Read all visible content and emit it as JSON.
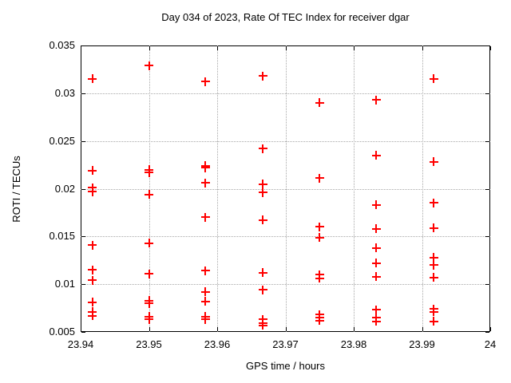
{
  "accent_colors": {
    "marker": "#ee0000",
    "grid": "#a8a8a8",
    "frame": "#000000",
    "background": "#ffffff"
  },
  "chart_data": {
    "type": "scatter",
    "title": "Day 034 of 2023, Rate Of TEC Index for receiver dgar",
    "xlabel": "GPS time / hours",
    "ylabel": "ROTI / TECUs",
    "xlim": [
      23.94,
      24
    ],
    "ylim": [
      0.005,
      0.035
    ],
    "grid": true,
    "legend_position": "none",
    "marker": "plus",
    "marker_color": "#ee0000",
    "x_ticks": [
      {
        "v": 23.94,
        "label": "23.94"
      },
      {
        "v": 23.95,
        "label": "23.95"
      },
      {
        "v": 23.96,
        "label": "23.96"
      },
      {
        "v": 23.97,
        "label": "23.97"
      },
      {
        "v": 23.98,
        "label": "23.98"
      },
      {
        "v": 23.99,
        "label": "23.99"
      },
      {
        "v": 24,
        "label": "24"
      }
    ],
    "y_ticks": [
      {
        "v": 0.005,
        "label": "0.005"
      },
      {
        "v": 0.01,
        "label": "0.01"
      },
      {
        "v": 0.015,
        "label": "0.015"
      },
      {
        "v": 0.02,
        "label": "0.02"
      },
      {
        "v": 0.025,
        "label": "0.025"
      },
      {
        "v": 0.03,
        "label": "0.03"
      },
      {
        "v": 0.035,
        "label": "0.035"
      }
    ],
    "series": [
      {
        "name": "ROTI",
        "points": [
          [
            23.9417,
            0.0315
          ],
          [
            23.9417,
            0.0219
          ],
          [
            23.9417,
            0.0201
          ],
          [
            23.9417,
            0.0197
          ],
          [
            23.9417,
            0.0141
          ],
          [
            23.9417,
            0.0115
          ],
          [
            23.9417,
            0.0104
          ],
          [
            23.9417,
            0.0081
          ],
          [
            23.9417,
            0.0071
          ],
          [
            23.9417,
            0.0067
          ],
          [
            23.95,
            0.0329
          ],
          [
            23.95,
            0.022
          ],
          [
            23.95,
            0.0217
          ],
          [
            23.95,
            0.0194
          ],
          [
            23.95,
            0.0143
          ],
          [
            23.95,
            0.0111
          ],
          [
            23.95,
            0.0083
          ],
          [
            23.95,
            0.008
          ],
          [
            23.95,
            0.0066
          ],
          [
            23.95,
            0.0063
          ],
          [
            23.9583,
            0.0312
          ],
          [
            23.9583,
            0.0224
          ],
          [
            23.9583,
            0.0222
          ],
          [
            23.9583,
            0.0206
          ],
          [
            23.9583,
            0.017
          ],
          [
            23.9583,
            0.0114
          ],
          [
            23.9583,
            0.0092
          ],
          [
            23.9583,
            0.0082
          ],
          [
            23.9583,
            0.0066
          ],
          [
            23.9583,
            0.0063
          ],
          [
            23.9667,
            0.0318
          ],
          [
            23.9667,
            0.0242
          ],
          [
            23.9667,
            0.0205
          ],
          [
            23.9667,
            0.0196
          ],
          [
            23.9667,
            0.0167
          ],
          [
            23.9667,
            0.0112
          ],
          [
            23.9667,
            0.0094
          ],
          [
            23.9667,
            0.0063
          ],
          [
            23.9667,
            0.0059
          ],
          [
            23.9667,
            0.0057
          ],
          [
            23.975,
            0.029
          ],
          [
            23.975,
            0.0211
          ],
          [
            23.975,
            0.016
          ],
          [
            23.975,
            0.0149
          ],
          [
            23.975,
            0.011
          ],
          [
            23.975,
            0.0106
          ],
          [
            23.975,
            0.0068
          ],
          [
            23.975,
            0.0065
          ],
          [
            23.975,
            0.0062
          ],
          [
            23.9833,
            0.0293
          ],
          [
            23.9833,
            0.0235
          ],
          [
            23.9833,
            0.0183
          ],
          [
            23.9833,
            0.0158
          ],
          [
            23.9833,
            0.0138
          ],
          [
            23.9833,
            0.0122
          ],
          [
            23.9833,
            0.0108
          ],
          [
            23.9833,
            0.0073
          ],
          [
            23.9833,
            0.0065
          ],
          [
            23.9833,
            0.0061
          ],
          [
            23.9917,
            0.0315
          ],
          [
            23.9917,
            0.0228
          ],
          [
            23.9917,
            0.0185
          ],
          [
            23.9917,
            0.0159
          ],
          [
            23.9917,
            0.0128
          ],
          [
            23.9917,
            0.012
          ],
          [
            23.9917,
            0.0107
          ],
          [
            23.9917,
            0.0074
          ],
          [
            23.9917,
            0.0071
          ],
          [
            23.9917,
            0.0061
          ]
        ]
      }
    ]
  }
}
